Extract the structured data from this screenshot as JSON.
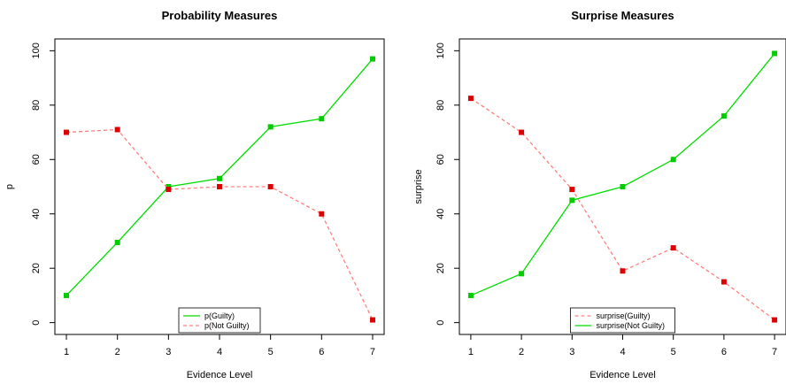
{
  "chart_data": [
    {
      "type": "line",
      "title": "Probability Measures",
      "xlabel": "Evidence Level",
      "ylabel": "p",
      "x": [
        1,
        2,
        3,
        4,
        5,
        6,
        7
      ],
      "xlim": [
        1,
        7
      ],
      "ylim": [
        0,
        100
      ],
      "yticks": [
        0,
        20,
        40,
        60,
        80,
        100
      ],
      "legend_position": "bottom-center",
      "series": [
        {
          "name": "p(Guilty)",
          "values": [
            10,
            29.5,
            50,
            53,
            72,
            75,
            97
          ],
          "color": "#00dd00",
          "marker_color": "#00cc00",
          "dash": "solid"
        },
        {
          "name": "p(Not Guilty)",
          "values": [
            70,
            71,
            49,
            50,
            50,
            40,
            1
          ],
          "color": "#ff8080",
          "marker_color": "#dd0000",
          "dash": "dashed"
        }
      ]
    },
    {
      "type": "line",
      "title": "Surprise Measures",
      "xlabel": "Evidence Level",
      "ylabel": "surprise",
      "x": [
        1,
        2,
        3,
        4,
        5,
        6,
        7
      ],
      "xlim": [
        1,
        7
      ],
      "ylim": [
        0,
        100
      ],
      "yticks": [
        0,
        20,
        40,
        60,
        80,
        100
      ],
      "legend_position": "bottom-center",
      "series": [
        {
          "name": "surprise(Guilty)",
          "values": [
            82.5,
            70,
            49,
            19,
            27.5,
            15,
            1
          ],
          "color": "#ff8080",
          "marker_color": "#dd0000",
          "dash": "dashed"
        },
        {
          "name": "surprise(Not Guilty)",
          "values": [
            10,
            18,
            45,
            50,
            60,
            76,
            99
          ],
          "color": "#00dd00",
          "marker_color": "#00cc00",
          "dash": "solid"
        }
      ]
    }
  ]
}
